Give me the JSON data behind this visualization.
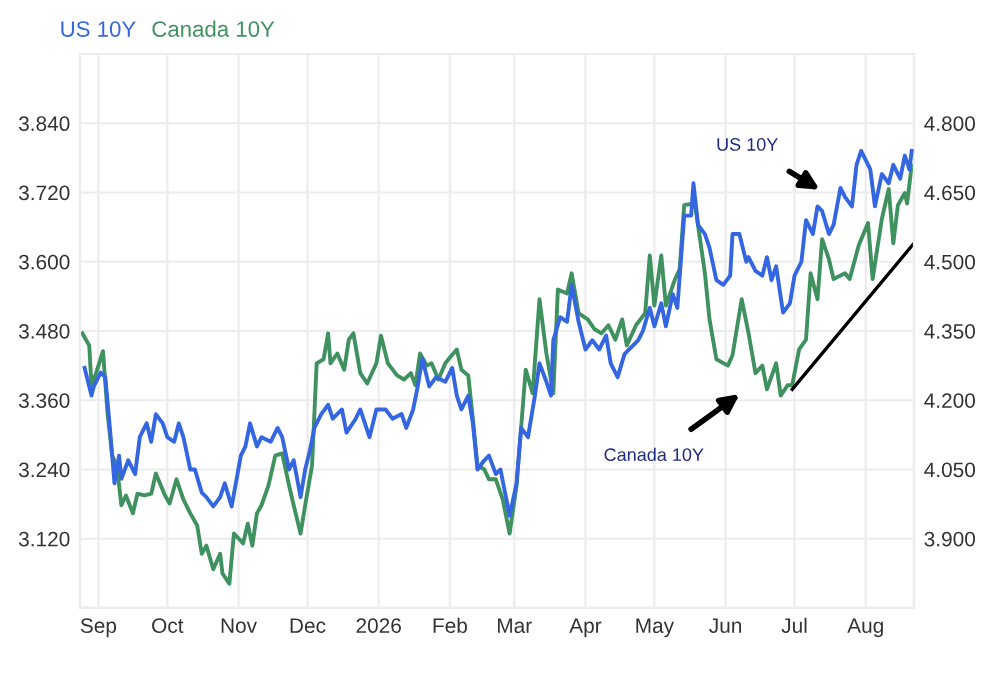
{
  "chart_data": {
    "type": "line",
    "series": [
      {
        "name": "US 10Y",
        "color": "#3366e0",
        "axis": "y2",
        "x": [
          "2025-08-26",
          "2025-08-29",
          "2025-08-30",
          "2025-09-02",
          "2025-09-04",
          "2025-09-06",
          "2025-09-08",
          "2025-09-10",
          "2025-09-11",
          "2025-09-14",
          "2025-09-17",
          "2025-09-19",
          "2025-09-22",
          "2025-09-24",
          "2025-09-26",
          "2025-09-29",
          "2025-10-01",
          "2025-10-04",
          "2025-10-06",
          "2025-10-08",
          "2025-10-11",
          "2025-10-13",
          "2025-10-16",
          "2025-10-18",
          "2025-10-21",
          "2025-10-24",
          "2025-10-26",
          "2025-10-29",
          "2025-11-02",
          "2025-11-04",
          "2025-11-06",
          "2025-11-09",
          "2025-11-11",
          "2025-11-15",
          "2025-11-18",
          "2025-11-20",
          "2025-11-23",
          "2025-11-25",
          "2025-11-28",
          "2025-11-30",
          "2025-12-02",
          "2025-12-04",
          "2025-12-07",
          "2025-12-10",
          "2025-12-12",
          "2025-12-16",
          "2025-12-18",
          "2025-12-22",
          "2025-12-24",
          "2025-12-28",
          "2025-12-31",
          "2026-01-04",
          "2026-01-07",
          "2026-01-11",
          "2026-01-13",
          "2026-01-16",
          "2026-01-18",
          "2026-01-20",
          "2026-01-23",
          "2026-01-26",
          "2026-01-30",
          "2026-02-02",
          "2026-02-04",
          "2026-02-06",
          "2026-02-09",
          "2026-02-11",
          "2026-02-13",
          "2026-02-16",
          "2026-02-18",
          "2026-02-21",
          "2026-02-23",
          "2026-02-25",
          "2026-02-27",
          "2026-03-02",
          "2026-03-04",
          "2026-03-07",
          "2026-03-10",
          "2026-03-12",
          "2026-03-15",
          "2026-03-17",
          "2026-03-18",
          "2026-03-21",
          "2026-03-24",
          "2026-03-26",
          "2026-03-29",
          "2026-04-01",
          "2026-04-04",
          "2026-04-07",
          "2026-04-10",
          "2026-04-12",
          "2026-04-15",
          "2026-04-18",
          "2026-04-20",
          "2026-04-24",
          "2026-04-26",
          "2026-04-29",
          "2026-05-01",
          "2026-05-04",
          "2026-05-06",
          "2026-05-09",
          "2026-05-11",
          "2026-05-14",
          "2026-05-17",
          "2026-05-18",
          "2026-05-20",
          "2026-05-23",
          "2026-05-25",
          "2026-05-28",
          "2026-05-31",
          "2026-06-03",
          "2026-06-04",
          "2026-06-07",
          "2026-06-10",
          "2026-06-11",
          "2026-06-14",
          "2026-06-17",
          "2026-06-19",
          "2026-06-21",
          "2026-06-23",
          "2026-06-26",
          "2026-06-29",
          "2026-07-01",
          "2026-07-04",
          "2026-07-06",
          "2026-07-09",
          "2026-07-11",
          "2026-07-13",
          "2026-07-16",
          "2026-07-18",
          "2026-07-21",
          "2026-07-23",
          "2026-07-26",
          "2026-07-28",
          "2026-07-30",
          "2026-08-03",
          "2026-08-05",
          "2026-08-08",
          "2026-08-11",
          "2026-08-13",
          "2026-08-16",
          "2026-08-18",
          "2026-08-20",
          "2026-08-21"
        ],
        "values": [
          4.27,
          4.21,
          4.23,
          4.26,
          4.25,
          4.14,
          4.02,
          4.08,
          4.03,
          4.07,
          4.04,
          4.12,
          4.15,
          4.11,
          4.17,
          4.15,
          4.12,
          4.11,
          4.15,
          4.12,
          4.05,
          4.05,
          4.0,
          3.99,
          3.97,
          3.99,
          4.02,
          3.97,
          4.08,
          4.1,
          4.15,
          4.1,
          4.12,
          4.11,
          4.14,
          4.12,
          4.05,
          4.07,
          3.99,
          4.05,
          4.09,
          4.14,
          4.17,
          4.19,
          4.16,
          4.18,
          4.13,
          4.16,
          4.18,
          4.12,
          4.18,
          4.18,
          4.16,
          4.17,
          4.14,
          4.18,
          4.23,
          4.29,
          4.23,
          4.25,
          4.24,
          4.27,
          4.21,
          4.18,
          4.21,
          4.15,
          4.05,
          4.07,
          4.08,
          4.04,
          4.05,
          4.0,
          3.95,
          4.02,
          4.14,
          4.12,
          4.21,
          4.28,
          4.24,
          4.21,
          4.33,
          4.38,
          4.37,
          4.45,
          4.37,
          4.31,
          4.33,
          4.31,
          4.34,
          4.28,
          4.25,
          4.3,
          4.31,
          4.33,
          4.35,
          4.4,
          4.36,
          4.41,
          4.36,
          4.43,
          4.4,
          4.6,
          4.6,
          4.67,
          4.58,
          4.56,
          4.53,
          4.46,
          4.45,
          4.47,
          4.56,
          4.56,
          4.5,
          4.51,
          4.48,
          4.47,
          4.51,
          4.46,
          4.49,
          4.39,
          4.41,
          4.47,
          4.5,
          4.59,
          4.56,
          4.62,
          4.61,
          4.56,
          4.58,
          4.66,
          4.64,
          4.62,
          4.71,
          4.74,
          4.7,
          4.62,
          4.69,
          4.67,
          4.71,
          4.68,
          4.73,
          4.7,
          4.74
        ]
      },
      {
        "name": "Canada 10Y",
        "color": "#3f9160",
        "axis": "y",
        "x": [
          "2025-08-25",
          "2025-08-28",
          "2025-08-29",
          "2025-08-31",
          "2025-09-03",
          "2025-09-05",
          "2025-09-07",
          "2025-09-09",
          "2025-09-11",
          "2025-09-13",
          "2025-09-16",
          "2025-09-18",
          "2025-09-21",
          "2025-09-24",
          "2025-09-26",
          "2025-09-30",
          "2025-10-02",
          "2025-10-05",
          "2025-10-08",
          "2025-10-11",
          "2025-10-14",
          "2025-10-16",
          "2025-10-18",
          "2025-10-21",
          "2025-10-24",
          "2025-10-25",
          "2025-10-28",
          "2025-10-30",
          "2025-11-03",
          "2025-11-05",
          "2025-11-07",
          "2025-11-09",
          "2025-11-11",
          "2025-11-14",
          "2025-11-17",
          "2025-11-20",
          "2025-11-23",
          "2025-11-25",
          "2025-11-28",
          "2025-11-30",
          "2025-12-03",
          "2025-12-05",
          "2025-12-08",
          "2025-12-10",
          "2025-12-11",
          "2025-12-14",
          "2025-12-17",
          "2025-12-19",
          "2025-12-21",
          "2025-12-24",
          "2025-12-27",
          "2025-12-31",
          "2026-01-02",
          "2026-01-05",
          "2026-01-09",
          "2026-01-12",
          "2026-01-15",
          "2026-01-17",
          "2026-01-19",
          "2026-01-22",
          "2026-01-24",
          "2026-01-27",
          "2026-01-30",
          "2026-02-01",
          "2026-02-04",
          "2026-02-06",
          "2026-02-09",
          "2026-02-11",
          "2026-02-13",
          "2026-02-16",
          "2026-02-18",
          "2026-02-21",
          "2026-02-24",
          "2026-02-27",
          "2026-03-02",
          "2026-03-06",
          "2026-03-09",
          "2026-03-12",
          "2026-03-15",
          "2026-03-18",
          "2026-03-20",
          "2026-03-24",
          "2026-03-26",
          "2026-03-29",
          "2026-04-02",
          "2026-04-05",
          "2026-04-08",
          "2026-04-11",
          "2026-04-14",
          "2026-04-17",
          "2026-04-19",
          "2026-04-23",
          "2026-04-27",
          "2026-04-29",
          "2026-05-01",
          "2026-05-04",
          "2026-05-06",
          "2026-05-10",
          "2026-05-12",
          "2026-05-14",
          "2026-05-18",
          "2026-05-19",
          "2026-05-23",
          "2026-05-25",
          "2026-05-28",
          "2026-06-02",
          "2026-06-04",
          "2026-06-08",
          "2026-06-11",
          "2026-06-14",
          "2026-06-17",
          "2026-06-19",
          "2026-06-23",
          "2026-06-25",
          "2026-06-28",
          "2026-06-30",
          "2026-07-03",
          "2026-07-06",
          "2026-07-08",
          "2026-07-11",
          "2026-07-13",
          "2026-07-16",
          "2026-07-18",
          "2026-07-23",
          "2026-07-25",
          "2026-07-29",
          "2026-08-02",
          "2026-08-04",
          "2026-08-08",
          "2026-08-11",
          "2026-08-13",
          "2026-08-15",
          "2026-08-18",
          "2026-08-19",
          "2026-08-21"
        ],
        "values": [
          3.476,
          3.455,
          3.386,
          3.407,
          3.445,
          3.337,
          3.264,
          3.247,
          3.178,
          3.195,
          3.164,
          3.198,
          3.195,
          3.198,
          3.233,
          3.195,
          3.181,
          3.223,
          3.188,
          3.164,
          3.143,
          3.094,
          3.108,
          3.067,
          3.094,
          3.06,
          3.042,
          3.129,
          3.112,
          3.146,
          3.108,
          3.164,
          3.178,
          3.212,
          3.264,
          3.268,
          3.212,
          3.178,
          3.129,
          3.178,
          3.247,
          3.424,
          3.431,
          3.476,
          3.424,
          3.441,
          3.413,
          3.465,
          3.476,
          3.407,
          3.389,
          3.424,
          3.472,
          3.424,
          3.403,
          3.396,
          3.407,
          3.386,
          3.441,
          3.42,
          3.424,
          3.396,
          3.424,
          3.434,
          3.448,
          3.413,
          3.403,
          3.327,
          3.247,
          3.24,
          3.223,
          3.223,
          3.188,
          3.129,
          3.212,
          3.413,
          3.372,
          3.535,
          3.441,
          3.372,
          3.552,
          3.545,
          3.58,
          3.511,
          3.5,
          3.483,
          3.476,
          3.49,
          3.465,
          3.5,
          3.455,
          3.49,
          3.511,
          3.611,
          3.524,
          3.611,
          3.524,
          3.57,
          3.587,
          3.698,
          3.701,
          3.691,
          3.58,
          3.5,
          3.431,
          3.42,
          3.438,
          3.535,
          3.476,
          3.407,
          3.42,
          3.379,
          3.424,
          3.368,
          3.386,
          3.386,
          3.448,
          3.465,
          3.58,
          3.535,
          3.639,
          3.604,
          3.57,
          3.58,
          3.57,
          3.629,
          3.667,
          3.57,
          3.674,
          3.726,
          3.632,
          3.698,
          3.719,
          3.701,
          3.767
        ]
      },
      {
        "type": "line",
        "color": "#000000",
        "axis": "y",
        "x": [
          "2026-06-30",
          "2026-08-22"
        ],
        "values": [
          3.379,
          3.632
        ]
      }
    ],
    "annotations": [
      "US 10Y",
      "Canada 10Y"
    ],
    "legend": "top left",
    "grid": true,
    "xlim": [
      "2025-08-24",
      "2026-08-22"
    ],
    "xticks": [
      {
        "value": "2025-09-01",
        "label": "Sep"
      },
      {
        "value": "2025-10-01",
        "label": "Oct"
      },
      {
        "value": "2025-11-01",
        "label": "Nov"
      },
      {
        "value": "2025-12-01",
        "label": "Dec"
      },
      {
        "value": "2026-01-01",
        "label": "2026"
      },
      {
        "value": "2026-02-01",
        "label": "Feb"
      },
      {
        "value": "2026-03-01",
        "label": "Mar"
      },
      {
        "value": "2026-04-01",
        "label": "Apr"
      },
      {
        "value": "2026-05-01",
        "label": "May"
      },
      {
        "value": "2026-06-01",
        "label": "Jun"
      },
      {
        "value": "2026-07-01",
        "label": "Jul"
      },
      {
        "value": "2026-08-01",
        "label": "Aug"
      }
    ],
    "ylim": [
      3.0,
      3.96
    ],
    "yticks": [
      {
        "value": 3.12,
        "label": "3.120"
      },
      {
        "value": 3.24,
        "label": "3.240"
      },
      {
        "value": 3.36,
        "label": "3.360"
      },
      {
        "value": 3.48,
        "label": "3.480"
      },
      {
        "value": 3.6,
        "label": "3.600"
      },
      {
        "value": 3.72,
        "label": "3.720"
      },
      {
        "value": 3.84,
        "label": "3.840"
      }
    ],
    "y2lim": [
      3.75,
      4.95
    ],
    "y2ticks": [
      {
        "value": 3.9,
        "label": "3.900"
      },
      {
        "value": 4.05,
        "label": "4.050"
      },
      {
        "value": 4.2,
        "label": "4.200"
      },
      {
        "value": 4.35,
        "label": "4.350"
      },
      {
        "value": 4.5,
        "label": "4.500"
      },
      {
        "value": 4.65,
        "label": "4.650"
      },
      {
        "value": 4.8,
        "label": "4.800"
      }
    ]
  }
}
